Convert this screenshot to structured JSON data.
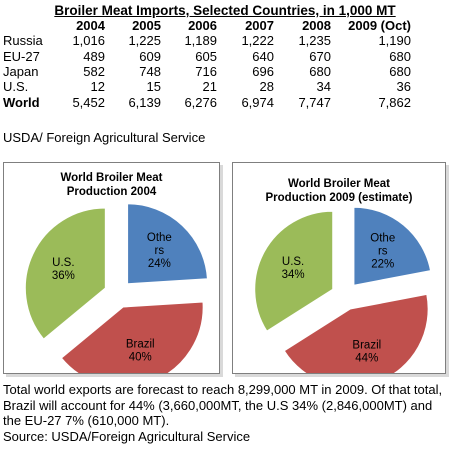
{
  "header": {
    "title": "Broiler Meat Imports, Selected Countries, in 1,000 MT"
  },
  "imports_table": {
    "columns": [
      "2004",
      "2005",
      "2006",
      "2007",
      "2008",
      "2009 (Oct)"
    ],
    "rows": [
      {
        "label": "Russia",
        "values": [
          "1,016",
          "1,225",
          "1,189",
          "1,222",
          "1,235",
          "1,190"
        ]
      },
      {
        "label": "EU-27",
        "values": [
          "489",
          "609",
          "605",
          "640",
          "670",
          "680"
        ]
      },
      {
        "label": "Japan",
        "values": [
          "582",
          "748",
          "716",
          "696",
          "680",
          "680"
        ]
      },
      {
        "label": "U.S.",
        "values": [
          "12",
          "15",
          "21",
          "28",
          "34",
          "36"
        ]
      },
      {
        "label": "World",
        "values": [
          "5,452",
          "6,139",
          "6,276",
          "6,974",
          "7,747",
          "7,862"
        ]
      }
    ]
  },
  "table_source": "USDA/ Foreign Agricultural Service",
  "chart_data": [
    {
      "type": "pie",
      "title": "World Broiler Meat Production 2004",
      "title_lines": [
        "World Broiler Meat",
        "Production 2004"
      ],
      "slices": [
        {
          "label": "Others",
          "label_lines": [
            "Othe",
            "rs"
          ],
          "pct_text": "24%",
          "value": 24,
          "color": "#4f81bd"
        },
        {
          "label": "Brazil",
          "label_lines": [
            "Brazil"
          ],
          "pct_text": "40%",
          "value": 40,
          "color": "#c0504d"
        },
        {
          "label": "U.S.",
          "label_lines": [
            "U.S."
          ],
          "pct_text": "36%",
          "value": 36,
          "color": "#9bbb59"
        }
      ]
    },
    {
      "type": "pie",
      "title": "World Broiler Meat Production 2009 (estimate)",
      "title_lines": [
        "World Broiler Meat",
        "Production 2009 (estimate)"
      ],
      "slices": [
        {
          "label": "Others",
          "label_lines": [
            "Othe",
            "rs"
          ],
          "pct_text": "22%",
          "value": 22,
          "color": "#4f81bd"
        },
        {
          "label": "Brazil",
          "label_lines": [
            "Brazil"
          ],
          "pct_text": "44%",
          "value": 44,
          "color": "#c0504d"
        },
        {
          "label": "U.S.",
          "label_lines": [
            "U.S."
          ],
          "pct_text": "34%",
          "value": 34,
          "color": "#9bbb59"
        }
      ]
    }
  ],
  "footer": {
    "text": "Total world exports are forecast to reach 8,299,000 MT in 2009. Of that total, Brazil will account for 44% (3,660,000MT, the U.S 34% (2,846,000MT) and the EU-27 7% (610,000 MT).",
    "source": "Source: USDA/Foreign Agricultural Service"
  }
}
